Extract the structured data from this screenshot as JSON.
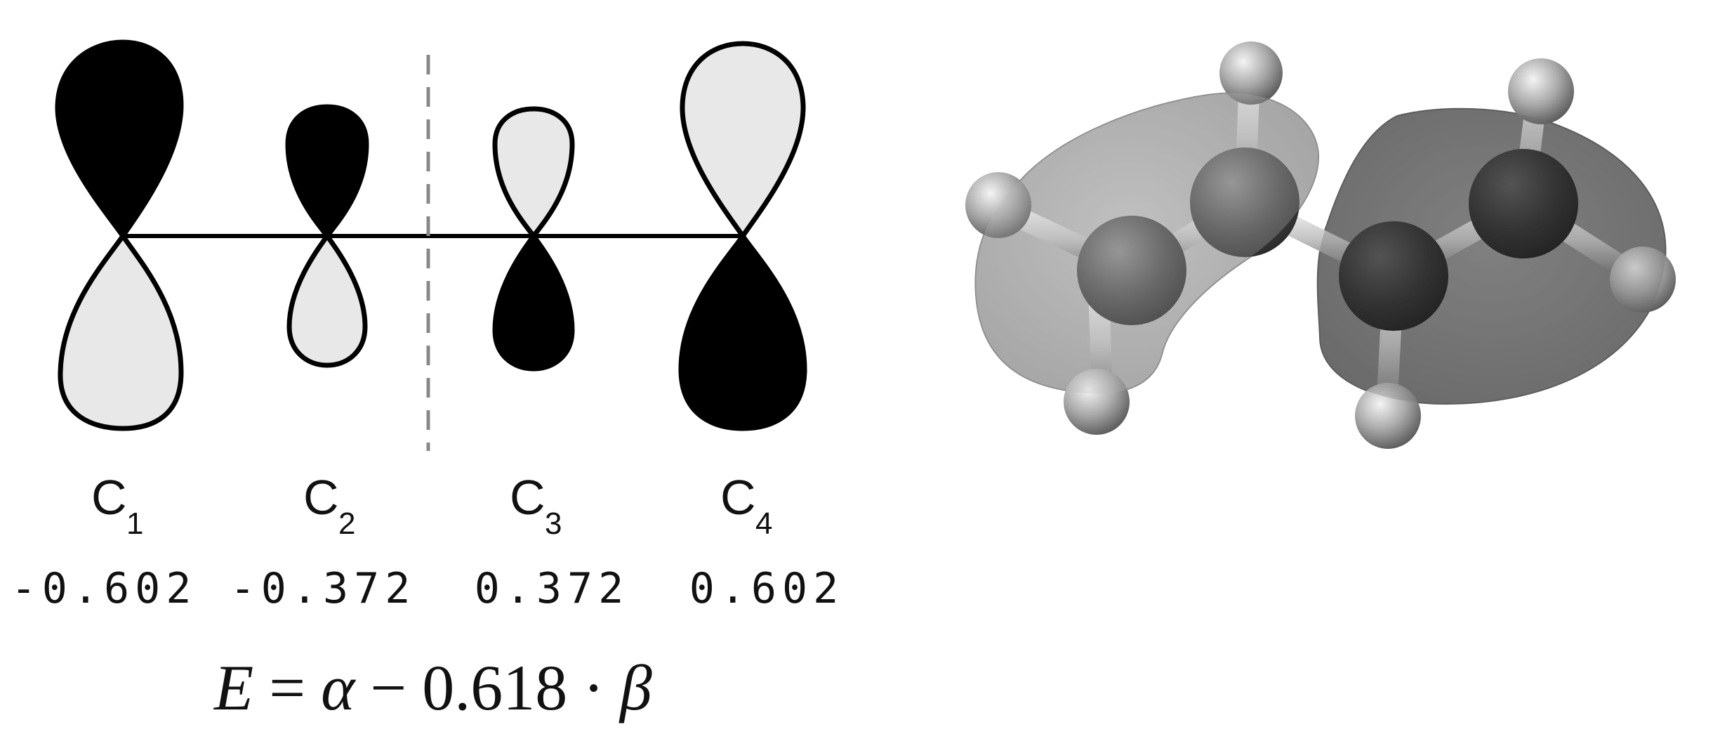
{
  "diagram": {
    "atoms": [
      {
        "symbol": "C",
        "index": "1",
        "coefficient": "-0.602",
        "upper_lobe": "dark",
        "lower_lobe": "light"
      },
      {
        "symbol": "C",
        "index": "2",
        "coefficient": "-0.372",
        "upper_lobe": "dark",
        "lower_lobe": "light"
      },
      {
        "symbol": "C",
        "index": "3",
        "coefficient": "0.372",
        "upper_lobe": "light",
        "lower_lobe": "dark"
      },
      {
        "symbol": "C",
        "index": "4",
        "coefficient": "0.602",
        "upper_lobe": "light",
        "lower_lobe": "dark"
      }
    ],
    "node_plane": "dashed line between C2 and C3",
    "energy": {
      "E": "E",
      "equals": "=",
      "alpha": "α",
      "minus": "−",
      "value": "0.618",
      "dot": "·",
      "beta": "β"
    },
    "colors": {
      "dark_lobe": "#000000",
      "light_lobe": "#e8e8e8",
      "node_line": "#888888",
      "isosurface": "#9a9a9a"
    },
    "molecule_model": "butadiene orbital isosurface (ball-and-stick)"
  }
}
